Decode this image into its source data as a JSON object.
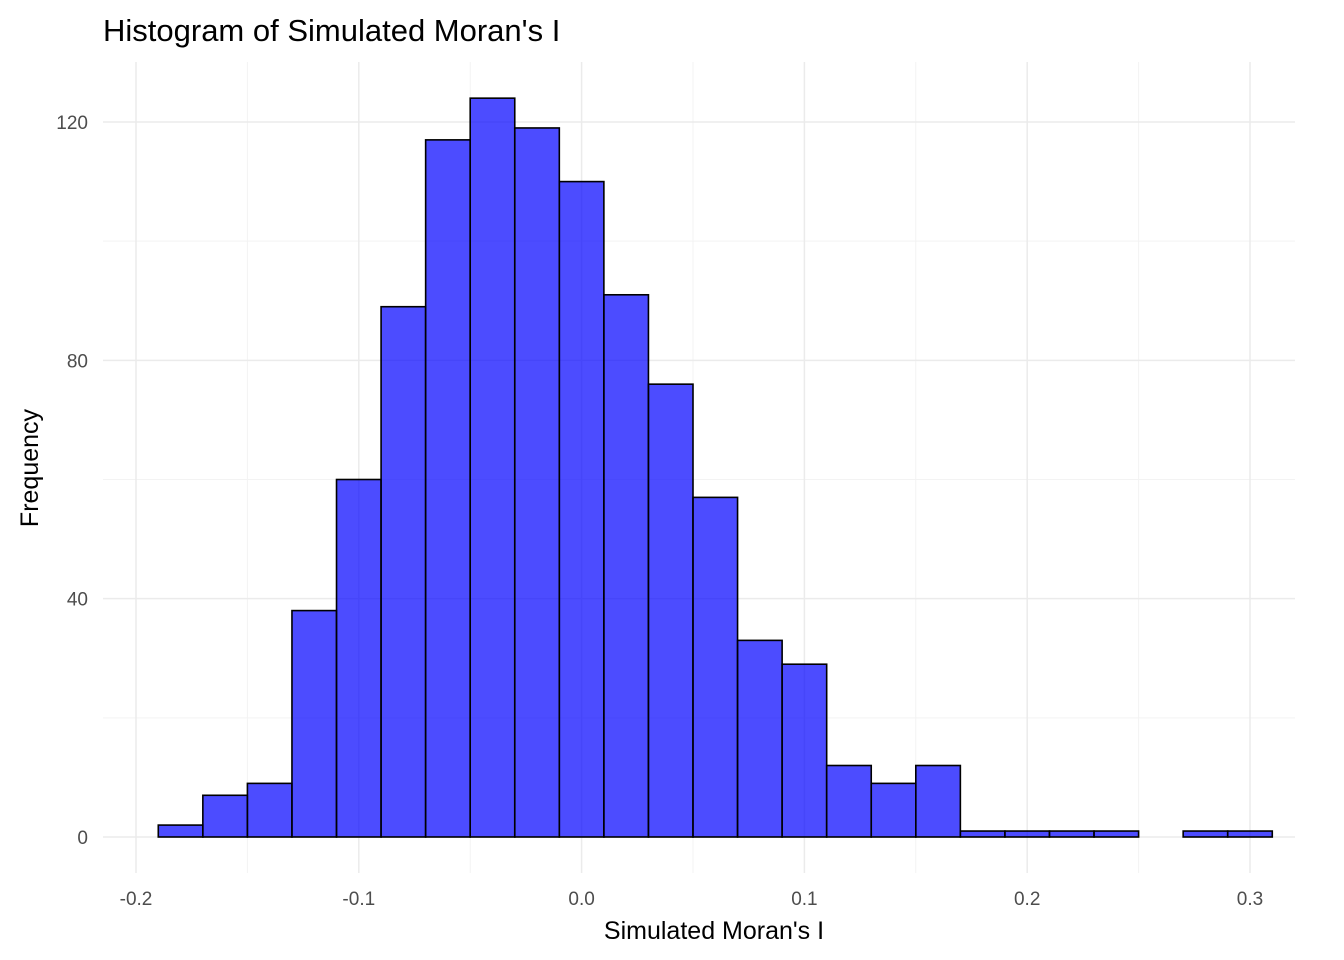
{
  "chart_data": {
    "type": "histogram",
    "title": "Histogram of Simulated Moran's I",
    "xlabel": "Simulated Moran's I",
    "ylabel": "Frequency",
    "xlim": [
      -0.2,
      0.31
    ],
    "ylim": [
      0,
      124
    ],
    "x_ticks": [
      -0.2,
      -0.1,
      0.0,
      0.1,
      0.2,
      0.3
    ],
    "x_tick_labels": [
      "-0.2",
      "-0.1",
      "0.0",
      "0.1",
      "0.2",
      "0.3"
    ],
    "y_ticks": [
      0,
      40,
      80,
      120
    ],
    "y_tick_labels": [
      "0",
      "40",
      "80",
      "120"
    ],
    "bin_width": 0.02,
    "bins": [
      {
        "x0": -0.19,
        "x1": -0.17,
        "count": 2
      },
      {
        "x0": -0.17,
        "x1": -0.15,
        "count": 7
      },
      {
        "x0": -0.15,
        "x1": -0.13,
        "count": 9
      },
      {
        "x0": -0.13,
        "x1": -0.11,
        "count": 38
      },
      {
        "x0": -0.11,
        "x1": -0.09,
        "count": 60
      },
      {
        "x0": -0.09,
        "x1": -0.07,
        "count": 89
      },
      {
        "x0": -0.07,
        "x1": -0.05,
        "count": 117
      },
      {
        "x0": -0.05,
        "x1": -0.03,
        "count": 124
      },
      {
        "x0": -0.03,
        "x1": -0.01,
        "count": 119
      },
      {
        "x0": -0.01,
        "x1": 0.01,
        "count": 110
      },
      {
        "x0": 0.01,
        "x1": 0.03,
        "count": 91
      },
      {
        "x0": 0.03,
        "x1": 0.05,
        "count": 76
      },
      {
        "x0": 0.05,
        "x1": 0.07,
        "count": 57
      },
      {
        "x0": 0.07,
        "x1": 0.09,
        "count": 33
      },
      {
        "x0": 0.09,
        "x1": 0.11,
        "count": 29
      },
      {
        "x0": 0.11,
        "x1": 0.13,
        "count": 12
      },
      {
        "x0": 0.13,
        "x1": 0.15,
        "count": 9
      },
      {
        "x0": 0.15,
        "x1": 0.17,
        "count": 12
      },
      {
        "x0": 0.17,
        "x1": 0.19,
        "count": 1
      },
      {
        "x0": 0.19,
        "x1": 0.21,
        "count": 1
      },
      {
        "x0": 0.21,
        "x1": 0.23,
        "count": 1
      },
      {
        "x0": 0.23,
        "x1": 0.25,
        "count": 1
      },
      {
        "x0": 0.25,
        "x1": 0.27,
        "count": 0
      },
      {
        "x0": 0.27,
        "x1": 0.29,
        "count": 1
      },
      {
        "x0": 0.29,
        "x1": 0.31,
        "count": 1
      }
    ],
    "bar_fill": "#0000ff",
    "bar_fill_opacity": 0.7,
    "bar_outline": "#000000",
    "grid": true,
    "legend": false
  }
}
